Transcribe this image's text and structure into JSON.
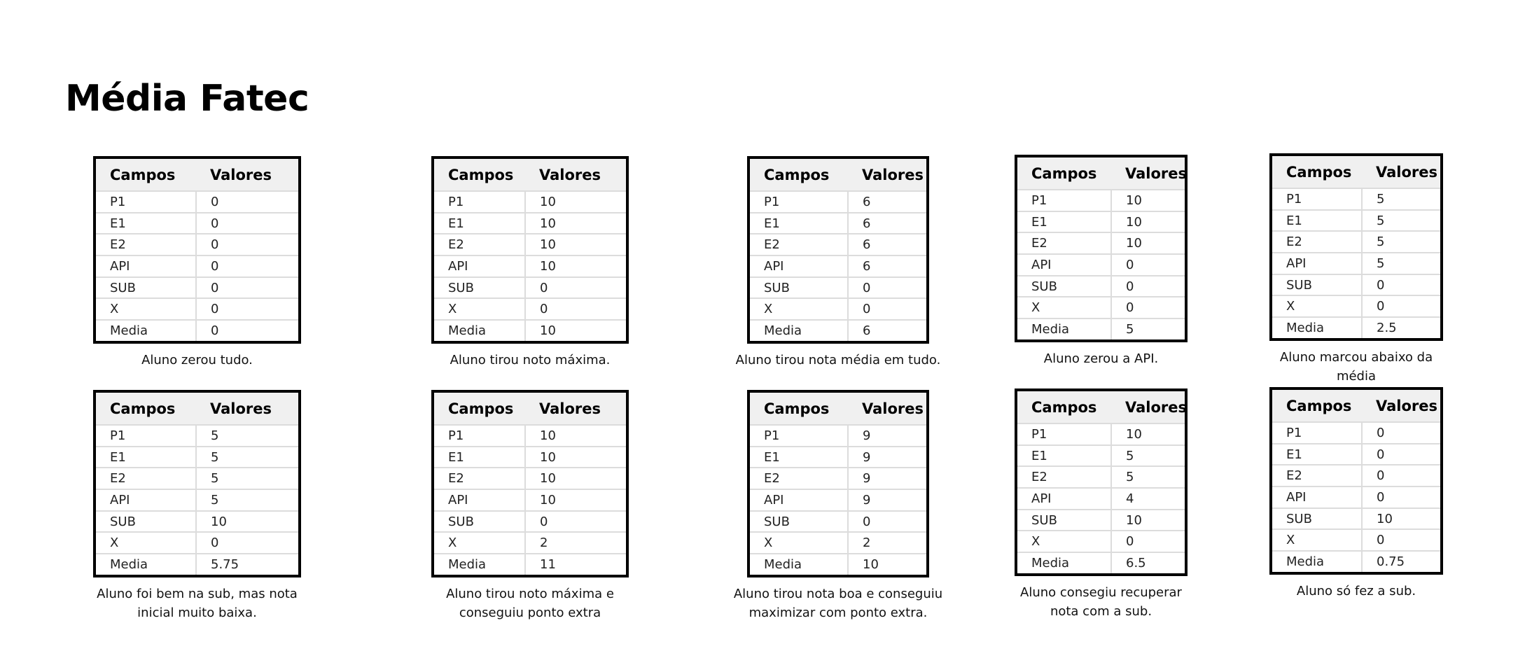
{
  "title": "Média Fatec",
  "header": {
    "campos": "Campos",
    "valores": "Valores"
  },
  "row_labels": [
    "P1",
    "E1",
    "E2",
    "API",
    "SUB",
    "X",
    "Media"
  ],
  "cards": [
    {
      "values": [
        "0",
        "0",
        "0",
        "0",
        "0",
        "0",
        "0"
      ],
      "caption": "Aluno zerou tudo."
    },
    {
      "values": [
        "10",
        "10",
        "10",
        "10",
        "0",
        "0",
        "10"
      ],
      "caption": "Aluno tirou noto máxima."
    },
    {
      "values": [
        "6",
        "6",
        "6",
        "6",
        "0",
        "0",
        "6"
      ],
      "caption": "Aluno tirou nota média em tudo."
    },
    {
      "values": [
        "10",
        "10",
        "10",
        "0",
        "0",
        "0",
        "5"
      ],
      "caption": "Aluno zerou a API."
    },
    {
      "values": [
        "5",
        "5",
        "5",
        "5",
        "0",
        "0",
        "2.5"
      ],
      "caption": "Aluno marcou abaixo da média"
    },
    {
      "values": [
        "5",
        "5",
        "5",
        "5",
        "10",
        "0",
        "5.75"
      ],
      "caption": "Aluno foi bem na sub, mas nota inicial muito baixa."
    },
    {
      "values": [
        "10",
        "10",
        "10",
        "10",
        "0",
        "2",
        "11"
      ],
      "caption": "Aluno tirou noto máxima e conseguiu ponto extra"
    },
    {
      "values": [
        "9",
        "9",
        "9",
        "9",
        "0",
        "2",
        "10"
      ],
      "caption": "Aluno tirou nota boa e conseguiu maximizar com ponto extra."
    },
    {
      "values": [
        "10",
        "5",
        "5",
        "4",
        "10",
        "0",
        "6.5"
      ],
      "caption": "Aluno consegiu recuperar nota com a sub."
    },
    {
      "values": [
        "0",
        "0",
        "0",
        "0",
        "10",
        "0",
        "0.75"
      ],
      "caption": "Aluno só fez a sub."
    }
  ]
}
